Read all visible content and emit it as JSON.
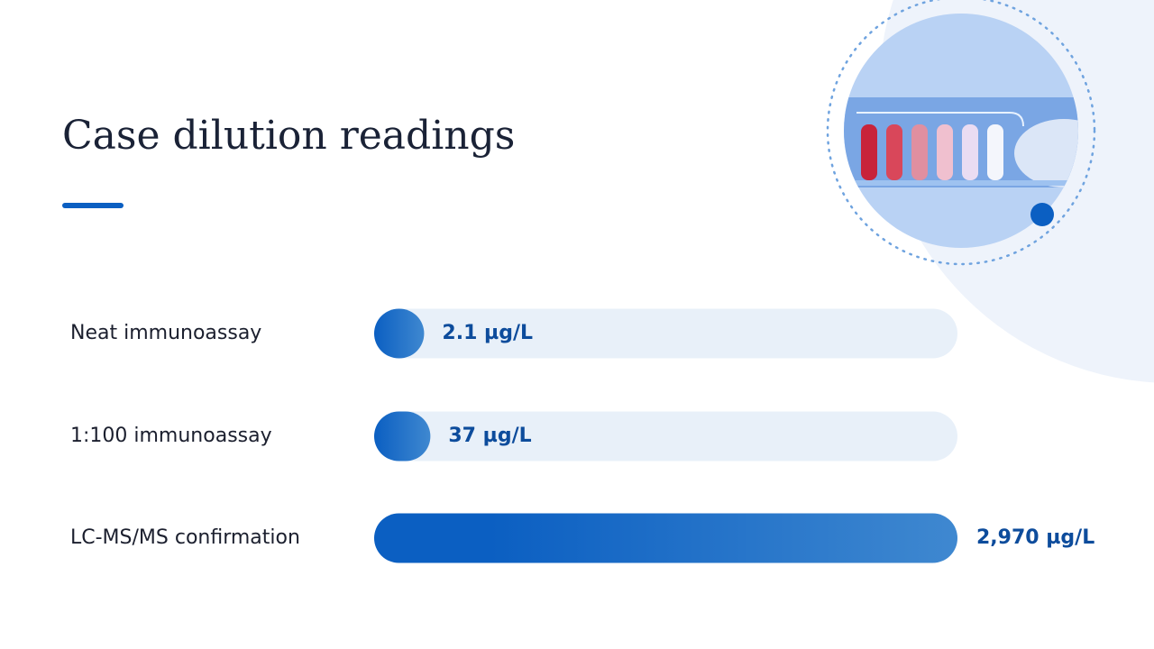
{
  "chart_data": {
    "type": "bar",
    "title": "Case dilution readings",
    "categories": [
      "Neat immunoassay",
      "1:100 immunoassay",
      "LC-MS/MS confirmation"
    ],
    "values": [
      2.1,
      37,
      2970
    ],
    "value_labels": [
      "2.1 µg/L",
      "37 µg/L",
      "2,970 µg/L"
    ],
    "color": "#0b5fc2"
  }
}
